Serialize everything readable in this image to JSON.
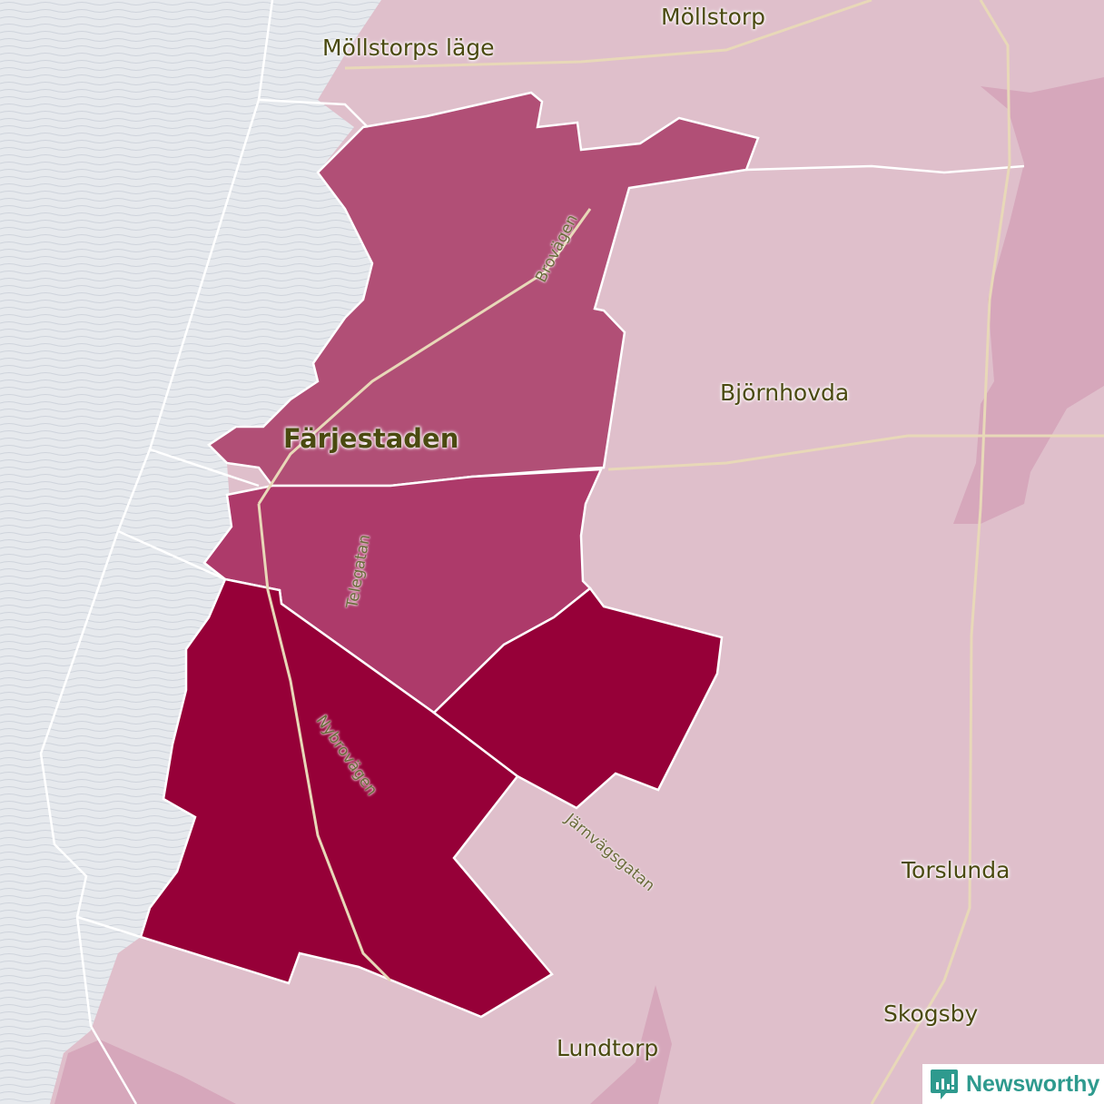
{
  "colors": {
    "sea": "#e6e9ed",
    "land": "#dfbfcb",
    "region_north": "#b14f76",
    "region_middle": "#ad3a6a",
    "region_south": "#960038",
    "region_east": "#d6a7bb",
    "brand": "#2e9a8e"
  },
  "places": {
    "mollstorp": "Möllstorp",
    "mollstorps_lage": "Möllstorps läge",
    "farjestaden": "Färjestaden",
    "bjornhovda": "Björnhovda",
    "torslunda": "Torslunda",
    "skogsby": "Skogsby",
    "lundtorp": "Lundtorp"
  },
  "roads": {
    "brovagen": "Brovägen",
    "telegatan": "Telegatan",
    "nybrovagen": "Nybrovägen",
    "jarnvagsgatan": "Järnvägsgatan"
  },
  "brand": {
    "name": "Newsworthy",
    "icon": "bar-chart-speech-icon"
  }
}
